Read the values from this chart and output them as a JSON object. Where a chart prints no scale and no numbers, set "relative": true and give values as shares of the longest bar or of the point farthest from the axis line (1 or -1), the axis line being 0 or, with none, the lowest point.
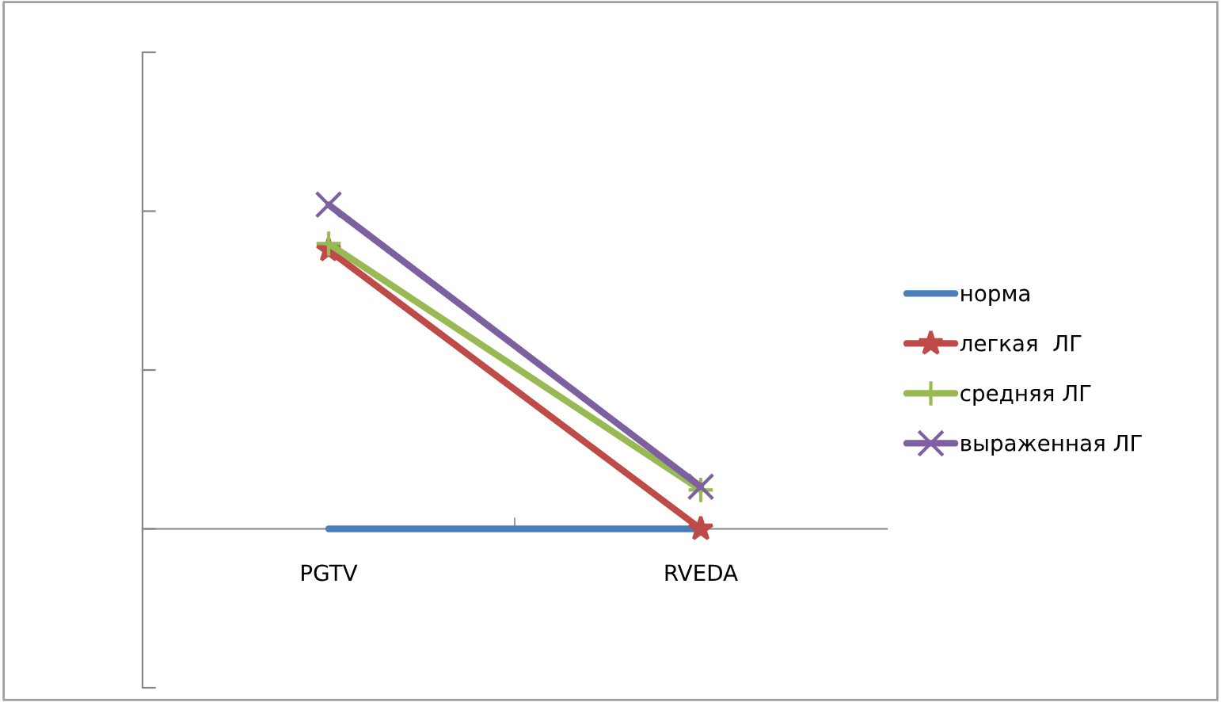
{
  "chart_data": {
    "type": "line",
    "relative": true,
    "categories": [
      "PGTV",
      "RVEDA"
    ],
    "legend": "right",
    "grid": false,
    "series": [
      {
        "name": "норма",
        "color": "#4a7ebb",
        "values": [
          0,
          0
        ],
        "marker": "none"
      },
      {
        "name": "легкая  ЛГ",
        "color": "#be4b48",
        "values": [
          0.86,
          0
        ],
        "marker": "star"
      },
      {
        "name": "средняя ЛГ",
        "color": "#98b954",
        "values": [
          0.88,
          0.12
        ],
        "marker": "plus"
      },
      {
        "name": "выраженная ЛГ",
        "color": "#7d60a0",
        "values": [
          1,
          0.13
        ],
        "marker": "cross"
      }
    ]
  }
}
